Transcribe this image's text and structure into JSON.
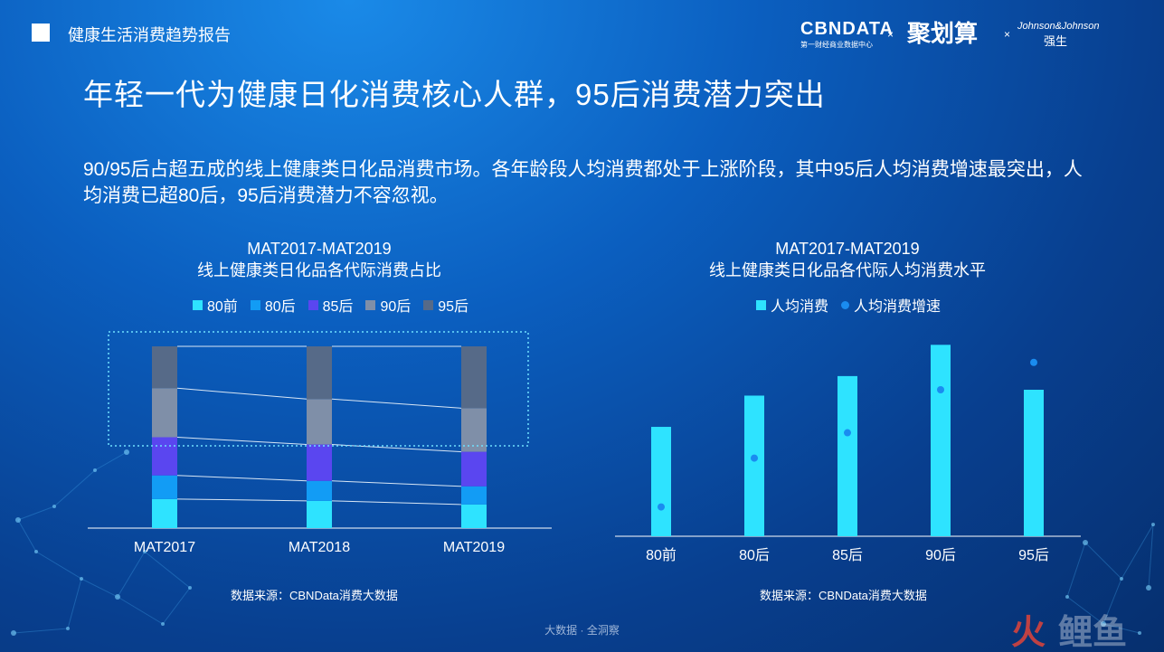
{
  "header": {
    "report_title": "健康生活消费趋势报告",
    "brand_cbn": "CBNDATA",
    "brand_cbn_sub": "第一财经商业数据中心",
    "brand_jhs": "聚划算",
    "brand_jj": "Johnson&Johnson",
    "brand_jj_cn": "强生",
    "times": "×"
  },
  "main_title": "年轻一代为健康日化消费核心人群，95后消费潜力突出",
  "summary": "90/95后占超五成的线上健康类日化品消费市场。各年龄段人均消费都处于上涨阶段，其中95后人均消费增速最突出，人均消费已超80后，95后消费潜力不容忽视。",
  "left_chart": {
    "title_line1": "MAT2017-MAT2019",
    "title_line2": "线上健康类日化品各代际消费占比",
    "source": "数据来源：CBNData消费大数据"
  },
  "right_chart": {
    "title_line1": "MAT2017-MAT2019",
    "title_line2": "线上健康类日化品各代际人均消费水平",
    "source": "数据来源：CBNData消费大数据"
  },
  "footer": "大数据 · 全洞察",
  "watermark": "火鲤鱼",
  "colors": {
    "80前": "#2ee3ff",
    "80后": "#129cf5",
    "85后": "#5a46f0",
    "90后": "#7f8fa8",
    "95后": "#566a88",
    "bar": "#2ee3ff",
    "dot": "#1a8cf0"
  },
  "chart_data": [
    {
      "type": "bar",
      "stacked": true,
      "normalized": true,
      "categories": [
        "MAT2017",
        "MAT2018",
        "MAT2019"
      ],
      "series": [
        {
          "name": "80前",
          "values": [
            16,
            15,
            13
          ]
        },
        {
          "name": "80后",
          "values": [
            13,
            11,
            10
          ]
        },
        {
          "name": "85后",
          "values": [
            21,
            20,
            19
          ]
        },
        {
          "name": "90后",
          "values": [
            27,
            25,
            24
          ]
        },
        {
          "name": "95后",
          "values": [
            23,
            29,
            34
          ]
        }
      ],
      "ylim": [
        0,
        100
      ],
      "legend": "top-center",
      "grid": false
    },
    {
      "type": "bar",
      "categories": [
        "80前",
        "80后",
        "85后",
        "90后",
        "95后"
      ],
      "series": [
        {
          "name": "人均消费",
          "kind": "bar",
          "values": [
            56,
            72,
            82,
            98,
            75
          ]
        },
        {
          "name": "人均消费增速",
          "kind": "scatter",
          "values": [
            15,
            40,
            53,
            75,
            89
          ]
        }
      ],
      "ylim": [
        0,
        100
      ],
      "legend": "top-center",
      "grid": false
    }
  ]
}
